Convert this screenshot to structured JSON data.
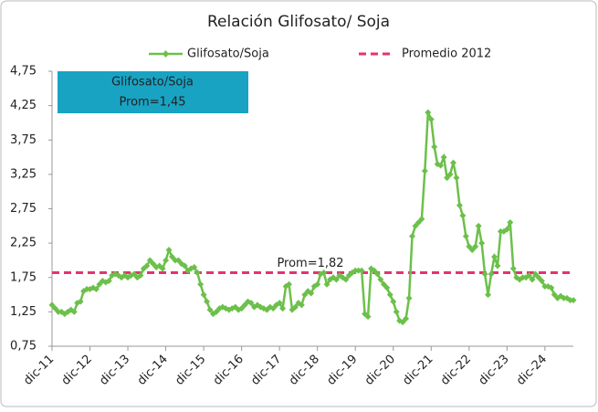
{
  "chart_data": {
    "type": "line",
    "title": "Relación Glifosato/ Soja",
    "categories": [
      "dic-11",
      null,
      null,
      null,
      null,
      null,
      null,
      null,
      null,
      null,
      null,
      null,
      "dic-12",
      null,
      null,
      null,
      null,
      null,
      null,
      null,
      null,
      null,
      null,
      null,
      "dic-13",
      null,
      null,
      null,
      null,
      null,
      null,
      null,
      null,
      null,
      null,
      null,
      "dic-14",
      null,
      null,
      null,
      null,
      null,
      null,
      null,
      null,
      null,
      null,
      null,
      "dic-15",
      null,
      null,
      null,
      null,
      null,
      null,
      null,
      null,
      null,
      null,
      null,
      "dic-16",
      null,
      null,
      null,
      null,
      null,
      null,
      null,
      null,
      null,
      null,
      null,
      "dic-17",
      null,
      null,
      null,
      null,
      null,
      null,
      null,
      null,
      null,
      null,
      null,
      "dic-18",
      null,
      null,
      null,
      null,
      null,
      null,
      null,
      null,
      null,
      null,
      null,
      "dic-19",
      null,
      null,
      null,
      null,
      null,
      null,
      null,
      null,
      null,
      null,
      null,
      "dic-20",
      null,
      null,
      null,
      null,
      null,
      null,
      null,
      null,
      null,
      null,
      null,
      "dic-21",
      null,
      null,
      null,
      null,
      null,
      null,
      null,
      null,
      null,
      null,
      null,
      "dic-22",
      null,
      null,
      null,
      null,
      null,
      null,
      null,
      null,
      null,
      null,
      null,
      "dic-23",
      null,
      null,
      null,
      null,
      null,
      null,
      null,
      null,
      null,
      null,
      null,
      "dic-24",
      null,
      null,
      null,
      null,
      null,
      null,
      null,
      null,
      null
    ],
    "series": [
      {
        "name": "Glifosato/Soja",
        "color": "#6cc04a",
        "values": [
          1.35,
          1.3,
          1.25,
          1.25,
          1.22,
          1.25,
          1.28,
          1.25,
          1.38,
          1.4,
          1.55,
          1.58,
          1.58,
          1.6,
          1.58,
          1.65,
          1.7,
          1.68,
          1.7,
          1.78,
          1.8,
          1.78,
          1.75,
          1.78,
          1.75,
          1.78,
          1.8,
          1.75,
          1.78,
          1.88,
          1.92,
          2.0,
          1.95,
          1.9,
          1.92,
          1.88,
          2.0,
          2.15,
          2.05,
          2.0,
          2.0,
          1.95,
          1.92,
          1.85,
          1.88,
          1.9,
          1.82,
          1.65,
          1.5,
          1.4,
          1.28,
          1.22,
          1.25,
          1.3,
          1.32,
          1.3,
          1.28,
          1.3,
          1.32,
          1.28,
          1.3,
          1.35,
          1.4,
          1.38,
          1.32,
          1.35,
          1.32,
          1.3,
          1.28,
          1.32,
          1.3,
          1.35,
          1.38,
          1.3,
          1.62,
          1.65,
          1.28,
          1.32,
          1.38,
          1.35,
          1.5,
          1.55,
          1.52,
          1.62,
          1.65,
          1.8,
          1.82,
          1.65,
          1.72,
          1.75,
          1.72,
          1.78,
          1.75,
          1.72,
          1.78,
          1.82,
          1.85,
          1.85,
          1.85,
          1.22,
          1.18,
          1.88,
          1.85,
          1.8,
          1.72,
          1.65,
          1.6,
          1.5,
          1.4,
          1.25,
          1.12,
          1.1,
          1.15,
          1.45,
          2.35,
          2.5,
          2.55,
          2.6,
          3.3,
          4.15,
          4.05,
          3.65,
          3.4,
          3.38,
          3.5,
          3.2,
          3.25,
          3.42,
          3.2,
          2.8,
          2.65,
          2.35,
          2.2,
          2.15,
          2.2,
          2.5,
          2.25,
          1.8,
          1.5,
          1.8,
          2.05,
          1.92,
          2.42,
          2.42,
          2.45,
          2.55,
          1.88,
          1.75,
          1.72,
          1.75,
          1.75,
          1.78,
          1.72,
          1.8,
          1.75,
          1.7,
          1.62,
          1.62,
          1.6,
          1.5,
          1.45,
          1.48,
          1.45,
          1.45,
          1.42,
          1.42
        ]
      }
    ],
    "average": {
      "name": "Promedio 2012",
      "value": 1.82,
      "color": "#e5336f",
      "label": "Prom=1,82"
    },
    "box": {
      "title": "Glifosato/Soja",
      "text": "Prom=1,45",
      "color": "#19a3c3"
    },
    "ylim": [
      0.75,
      4.75
    ],
    "yticks": [
      {
        "value": 0.75,
        "label": "0,75"
      },
      {
        "value": 1.25,
        "label": "1,25"
      },
      {
        "value": 1.75,
        "label": "1,75"
      },
      {
        "value": 2.25,
        "label": "2,25"
      },
      {
        "value": 2.75,
        "label": "2,75"
      },
      {
        "value": 3.25,
        "label": "3,25"
      },
      {
        "value": 3.75,
        "label": "3,75"
      },
      {
        "value": 4.25,
        "label": "4,25"
      },
      {
        "value": 4.75,
        "label": "4,75"
      }
    ]
  }
}
